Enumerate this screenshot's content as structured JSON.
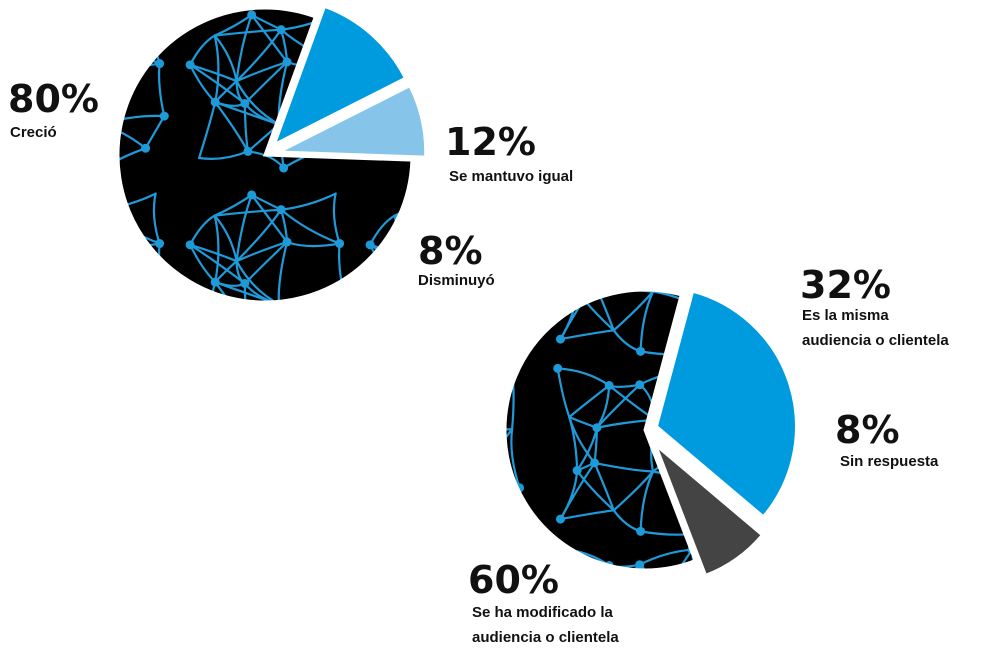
{
  "colors": {
    "pattern_base": "#000000",
    "pattern_lines": "#1f9ad9",
    "blue": "#009ade",
    "light_blue": "#86c4ea",
    "dark_gray": "#444444",
    "text": "#111111"
  },
  "chart_data": [
    {
      "type": "pie",
      "slices": [
        {
          "value": 80,
          "pct_label": "80%",
          "label": [
            "Creció"
          ],
          "style": "pattern"
        },
        {
          "value": 12,
          "pct_label": "12%",
          "label": [
            "Se mantuvo igual"
          ],
          "style": "blue",
          "exploded": true
        },
        {
          "value": 8,
          "pct_label": "8%",
          "label": [
            "Disminuyó"
          ],
          "style": "light_blue",
          "exploded": true
        }
      ]
    },
    {
      "type": "pie",
      "slices": [
        {
          "value": 32,
          "pct_label": "32%",
          "label": [
            "Es la misma",
            "audiencia o clientela"
          ],
          "style": "blue",
          "exploded": true
        },
        {
          "value": 8,
          "pct_label": "8%",
          "label": [
            "Sin respuesta"
          ],
          "style": "dark_gray",
          "exploded": true
        },
        {
          "value": 60,
          "pct_label": "60%",
          "label": [
            "Se ha modificado la",
            "audiencia o clientela"
          ],
          "style": "pattern"
        }
      ]
    }
  ]
}
